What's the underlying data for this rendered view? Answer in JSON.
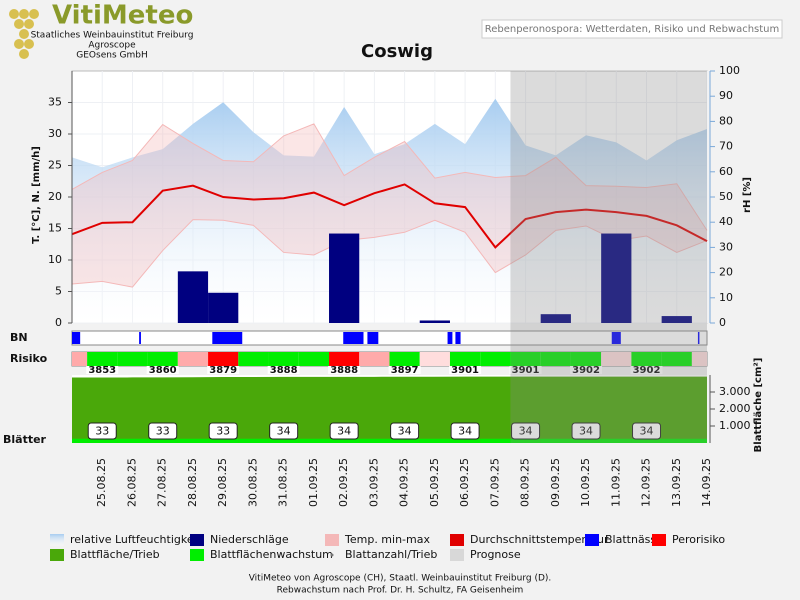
{
  "header": {
    "logo": "VitiMeteo",
    "lines": [
      "Staatliches Weinbauinstitut Freiburg",
      "Agroscope",
      "GEOsens GmbH"
    ],
    "subtitle": "Rebenperonospora: Wetterdaten, Risiko und Rebwachstum"
  },
  "chart_data": {
    "type": "combo",
    "title": "Coswig",
    "grid": true,
    "categories": [
      null,
      "25.08.25",
      "26.08.25",
      "27.08.25",
      "28.08.25",
      "29.08.25",
      "30.08.25",
      "31.08.25",
      "01.09.25",
      "02.09.25",
      "03.09.25",
      "04.09.25",
      "05.09.25",
      "06.09.25",
      "07.09.25",
      "08.09.25",
      "09.09.25",
      "10.09.25",
      "11.09.25",
      "12.09.25",
      "13.09.25",
      "14.09.25"
    ],
    "ylabel": "T. [°C], N. [mm/h]",
    "ylim": [
      0,
      40
    ],
    "yticks": [
      0,
      5,
      10,
      15,
      20,
      25,
      30,
      35
    ],
    "y2label": "rH [%]",
    "y2lim": [
      0,
      100
    ],
    "y2ticks": [
      0,
      10,
      20,
      30,
      40,
      50,
      60,
      70,
      80,
      90,
      100
    ],
    "y3label": "Blattfläche [cm²]",
    "y3lim": [
      0,
      4000
    ],
    "y3ticks": [
      {
        "value": 1000,
        "label": "1.000"
      },
      {
        "value": 2000,
        "label": "2.000"
      },
      {
        "value": 3000,
        "label": "3.000"
      }
    ],
    "rows": {
      "bn": "BN",
      "risk": "Risiko",
      "leaves": "Blätter"
    },
    "series": [
      {
        "name": "relative Luftfeuchtigkeit",
        "color": "#a8cdf0",
        "axis": "y2",
        "values": [
          65.7,
          61.8,
          65.7,
          69,
          79,
          87.6,
          75.7,
          66.5,
          66,
          85.7,
          67,
          71,
          79,
          71,
          89,
          70.5,
          66.5,
          74.5,
          71.7,
          64.5,
          72.5,
          77
        ]
      },
      {
        "name": "Niederschläge",
        "color": "#000080",
        "values": [
          0,
          0,
          0,
          0,
          8.2,
          4.8,
          0,
          0,
          0,
          14.2,
          0,
          0,
          0.4,
          0,
          0,
          0,
          1.4,
          0,
          14.2,
          0,
          1.1,
          0
        ]
      },
      {
        "name": "Temp. min-max",
        "color": "#f4b8b8",
        "high": [
          21.2,
          23.9,
          25.8,
          31.5,
          28.5,
          25.8,
          25.6,
          29.7,
          31.6,
          23.4,
          26.3,
          28.8,
          23,
          23.9,
          23.1,
          23.4,
          26.3,
          21.8,
          21.7,
          21.5,
          22.1,
          14.7
        ],
        "low": [
          6.2,
          6.6,
          5.7,
          11.5,
          16.4,
          16.3,
          15.5,
          11.2,
          10.8,
          13.1,
          13.6,
          14.4,
          16.3,
          14.4,
          8,
          10.8,
          14.7,
          15.4,
          13.1,
          13.8,
          11.2,
          13.1
        ]
      },
      {
        "name": "Durchschnittstemperatur",
        "color": "#e00000",
        "values": [
          14.1,
          15.9,
          16,
          21,
          21.8,
          20,
          19.6,
          19.8,
          20.7,
          18.7,
          20.6,
          22,
          19,
          18.4,
          12,
          16.5,
          17.6,
          18,
          17.6,
          17,
          15.5,
          13
        ]
      },
      {
        "name": "Blattnässe",
        "color": "#0000ff",
        "intervals": [
          [
            0,
            0.27
          ],
          [
            2.22,
            2.28
          ],
          [
            4.64,
            5.63
          ],
          [
            8.97,
            9.64
          ],
          [
            9.77,
            10.13
          ],
          [
            12.42,
            12.58
          ],
          [
            12.68,
            12.85
          ],
          [
            17.85,
            18.15
          ],
          [
            20.7,
            20.73
          ]
        ]
      },
      {
        "name": "Perorisiko",
        "color": "#ff0000",
        "cells": [
          "#ffaaaa",
          "#00ee00",
          "#00ee00",
          "#00ee00",
          "#ffaaaa",
          "#ff0000",
          "#00ee00",
          "#00ee00",
          "#00ee00",
          "#ff0000",
          "#ffaaaa",
          "#00ee00",
          "#ffdddd",
          "#00ee00",
          "#00ee00",
          "#00ee00",
          "#00ee00",
          "#00ee00",
          "#ffdddd",
          "#00ee00",
          "#00ee00",
          "#ffdddd"
        ]
      },
      {
        "name": "Blattfläche/Trieb",
        "color": "#4aa80a",
        "values": [
          3850,
          3853,
          3857,
          3860,
          3870,
          3879,
          3884,
          3888,
          3888,
          3888,
          3893,
          3897,
          3899,
          3901,
          3901,
          3901,
          3902,
          3902,
          3902,
          3902,
          3902,
          3902
        ],
        "value_labels": [
          null,
          "3853",
          null,
          "3860",
          null,
          "3879",
          null,
          "3888",
          null,
          "3888",
          null,
          "3897",
          null,
          "3901",
          null,
          "3901",
          null,
          "3902",
          null,
          "3902",
          null,
          null
        ]
      },
      {
        "name": "Blattflächenwachstum",
        "color": "#00ee00",
        "values": [
          250,
          250,
          250,
          250,
          250,
          250,
          250,
          250,
          250,
          250,
          250,
          250,
          250,
          250,
          250,
          250,
          250,
          250,
          250,
          250,
          250,
          250
        ]
      },
      {
        "name": "Blattanzahl/Trieb",
        "color": "#777777",
        "values": [
          33,
          33,
          33,
          33,
          33,
          33,
          33,
          34,
          34,
          34,
          34,
          34,
          34,
          34,
          34,
          34,
          34,
          34,
          34,
          34,
          34,
          34
        ],
        "value_labels": [
          null,
          "33",
          null,
          "33",
          null,
          "33",
          null,
          "34",
          null,
          "34",
          null,
          "34",
          null,
          "34",
          null,
          "34",
          null,
          "34",
          null,
          "34",
          null,
          null
        ]
      },
      {
        "name": "Prognose",
        "color": "#d8d8d8",
        "flags": [
          false,
          false,
          false,
          false,
          false,
          false,
          false,
          false,
          false,
          false,
          false,
          false,
          false,
          false,
          false,
          true,
          true,
          true,
          true,
          true,
          true,
          true
        ]
      }
    ]
  },
  "footer": [
    "VitiMeteo von Agroscope (CH), Staatl. Weinbauinstitut Freiburg (D).",
    "Rebwachstum nach Prof. Dr. H. Schultz, FA Geisenheim"
  ]
}
